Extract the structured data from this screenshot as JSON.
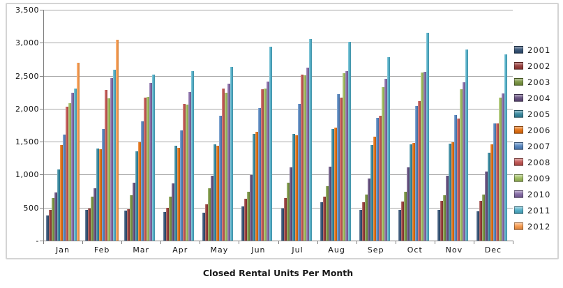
{
  "title": "Closed Rental Units Per Month",
  "chart_data": {
    "type": "bar",
    "title": "Closed Rental Units Per Month",
    "categories": [
      "Jan",
      "Feb",
      "Mar",
      "Apr",
      "May",
      "Jun",
      "Jul",
      "Aug",
      "Sep",
      "Oct",
      "Nov",
      "Dec"
    ],
    "series": [
      {
        "name": "2001",
        "color": "#2E4D71",
        "values": [
          380,
          460,
          450,
          430,
          425,
          520,
          490,
          580,
          460,
          460,
          460,
          445
        ]
      },
      {
        "name": "2002",
        "color": "#943634",
        "values": [
          460,
          490,
          480,
          500,
          545,
          630,
          640,
          670,
          580,
          590,
          600,
          600
        ]
      },
      {
        "name": "2003",
        "color": "#76923C",
        "values": [
          640,
          670,
          685,
          665,
          790,
          735,
          880,
          830,
          700,
          740,
          690,
          700
        ]
      },
      {
        "name": "2004",
        "color": "#5F497A",
        "values": [
          730,
          790,
          875,
          870,
          980,
          995,
          1110,
          1120,
          940,
          1105,
          980,
          1045
        ]
      },
      {
        "name": "2005",
        "color": "#31849B",
        "values": [
          1080,
          1400,
          1350,
          1435,
          1460,
          1615,
          1615,
          1690,
          1445,
          1460,
          1470,
          1330
        ]
      },
      {
        "name": "2006",
        "color": "#E36C0A",
        "values": [
          1450,
          1385,
          1495,
          1410,
          1435,
          1650,
          1600,
          1715,
          1580,
          1480,
          1490,
          1460
        ]
      },
      {
        "name": "2007",
        "color": "#4F81BD",
        "values": [
          1610,
          1690,
          1810,
          1670,
          1895,
          2005,
          2070,
          2220,
          1860,
          2040,
          1900,
          1775
        ]
      },
      {
        "name": "2008",
        "color": "#C0504D",
        "values": [
          2030,
          2280,
          2170,
          2075,
          2305,
          2290,
          2520,
          2165,
          1890,
          2115,
          1855,
          1780
        ]
      },
      {
        "name": "2009",
        "color": "#9BBB59",
        "values": [
          2080,
          2160,
          2180,
          2060,
          2245,
          2305,
          2510,
          2535,
          2330,
          2545,
          2290,
          2170
        ]
      },
      {
        "name": "2010",
        "color": "#8064A2",
        "values": [
          2240,
          2460,
          2395,
          2250,
          2375,
          2410,
          2620,
          2565,
          2455,
          2555,
          2405,
          2235
        ]
      },
      {
        "name": "2011",
        "color": "#4BACC6",
        "values": [
          2310,
          2590,
          2520,
          2570,
          2630,
          2935,
          3060,
          3010,
          2780,
          3150,
          2900,
          2820
        ]
      },
      {
        "name": "2012",
        "color": "#F79646",
        "values": [
          2700,
          3050,
          null,
          null,
          null,
          null,
          null,
          null,
          null,
          null,
          null,
          null
        ]
      }
    ],
    "ylim": [
      0,
      3500
    ],
    "ytick_interval": 500,
    "ytick_labels": [
      "-",
      "500",
      "1,000",
      "1,500",
      "2,000",
      "2,500",
      "3,000",
      "3,500"
    ],
    "grid": true,
    "legend_position": "right"
  }
}
